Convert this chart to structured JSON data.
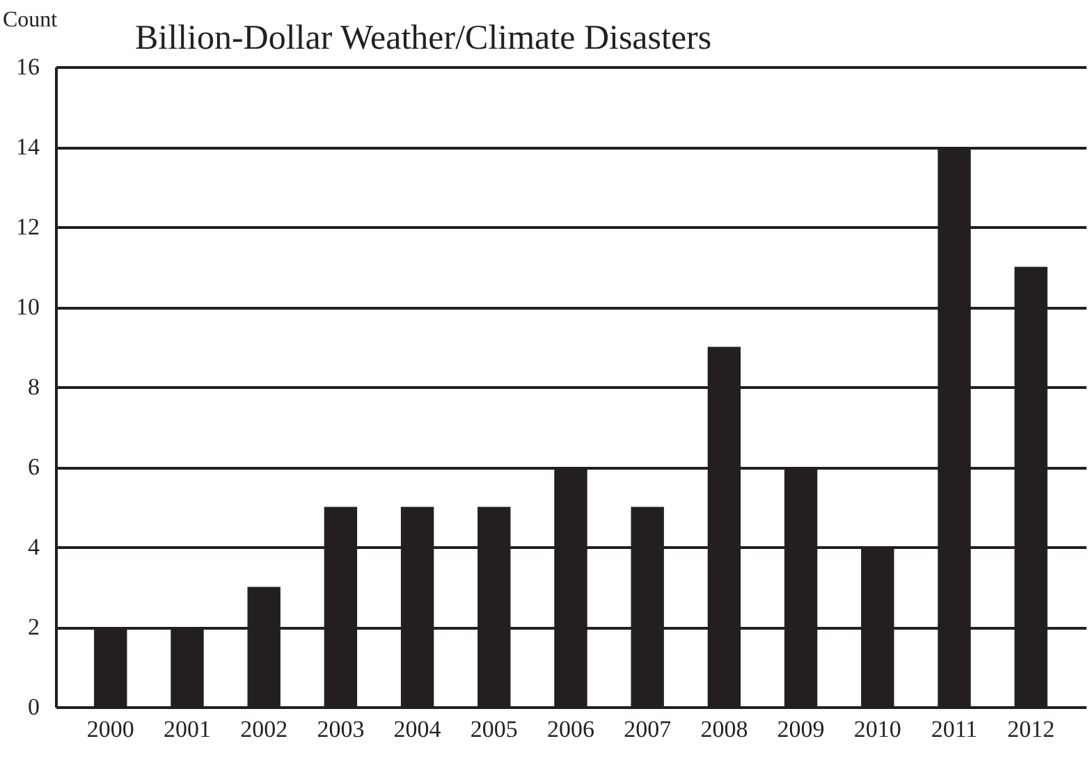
{
  "chart_data": {
    "type": "bar",
    "title": "Billion-Dollar Weather/Climate Disasters",
    "ylabel": "Count",
    "categories": [
      "2000",
      "2001",
      "2002",
      "2003",
      "2004",
      "2005",
      "2006",
      "2007",
      "2008",
      "2009",
      "2010",
      "2011",
      "2012"
    ],
    "values": [
      2,
      2,
      3,
      5,
      5,
      5,
      6,
      5,
      9,
      6,
      4,
      14,
      11
    ],
    "color": "#231f20",
    "ylim": [
      0,
      16
    ],
    "yticks": [
      0,
      2,
      4,
      6,
      8,
      10,
      12,
      14,
      16
    ],
    "grid": "y"
  }
}
